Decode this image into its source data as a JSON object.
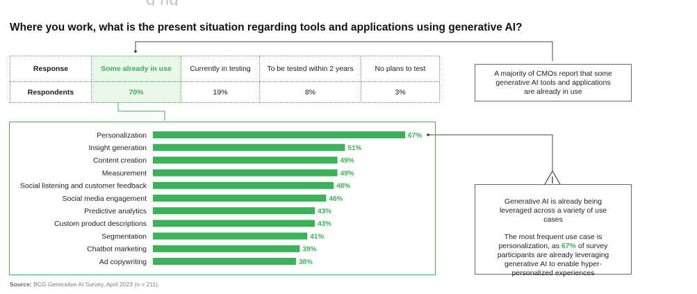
{
  "header": {
    "partial_title": "g            ng",
    "question": "Where you work, what is the present situation regarding tools and applications using generative AI?"
  },
  "response_table": {
    "row1_label": "Response",
    "row2_label": "Respondents",
    "columns": [
      {
        "response": "Some already in use",
        "respondents": "70%"
      },
      {
        "response": "Currently in testing",
        "respondents": "19%"
      },
      {
        "response": "To be tested within 2 years",
        "respondents": "8%"
      },
      {
        "response": "No plans to test",
        "respondents": "3%"
      }
    ]
  },
  "callout_top": "A majority of CMOs report that some generative AI tools and applications are already in use",
  "callout_bottom": {
    "p1": "Generative AI is already being leveraged across a variety of use cases",
    "p2_a": "The most frequent use case is personalization, as ",
    "p2_num": "67%",
    "p2_b": " of survey participants are already leveraging generative AI to enable hyper-personalized experiences"
  },
  "source": {
    "label": "Source:",
    "text": " BCG Generative AI Survey, April 2023 (n = 211)."
  },
  "chart_data": {
    "type": "bar",
    "orientation": "horizontal",
    "categories": [
      "Personalization",
      "Insight generation",
      "Content creation",
      "Measurement",
      "Social listening and customer feedback",
      "Social media engagement",
      "Predictive analytics",
      "Custom product descriptions",
      "Segmentation",
      "Chatbot marketing",
      "Ad copywriting"
    ],
    "values": [
      67,
      51,
      49,
      49,
      48,
      46,
      43,
      43,
      41,
      39,
      38
    ],
    "value_labels": [
      "67%",
      "51%",
      "49%",
      "49%",
      "48%",
      "46%",
      "43%",
      "43%",
      "41%",
      "39%",
      "38%"
    ],
    "xlim": [
      0,
      100
    ],
    "grid": false,
    "bar_color": "#3bb15a",
    "label_color": "#3bb15a"
  },
  "colors": {
    "accent": "#3bb15a",
    "highlight_bg": "#e9f6ea"
  }
}
